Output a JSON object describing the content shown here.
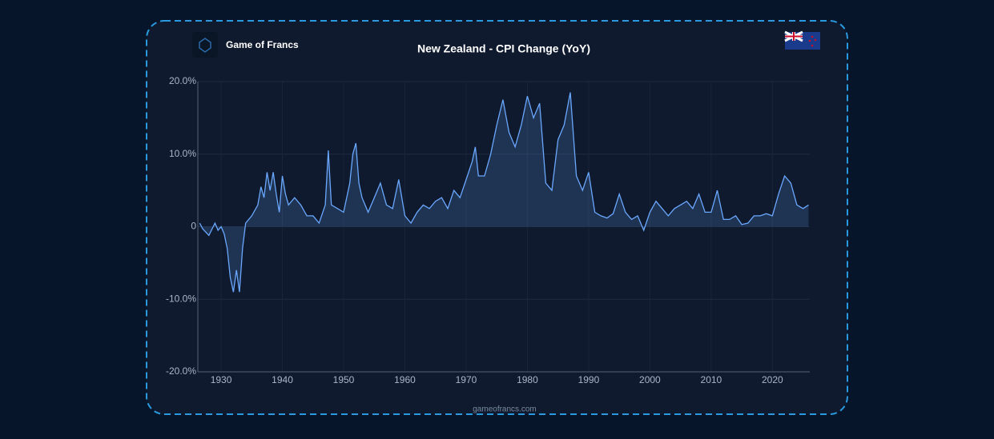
{
  "brand": "Game of Francs",
  "footer": "gameofrancs.com",
  "chart_data": {
    "type": "area",
    "title": "New Zealand - CPI Change (YoY)",
    "x": [
      1926.5,
      1927,
      1928,
      1929,
      1929.5,
      1930,
      1930.5,
      1931,
      1931.5,
      1932,
      1932.5,
      1933,
      1933.5,
      1934,
      1935,
      1936,
      1936.5,
      1937,
      1937.5,
      1938,
      1938.5,
      1939,
      1939.5,
      1940,
      1940.5,
      1941,
      1942,
      1943,
      1944,
      1945,
      1946,
      1947,
      1947.5,
      1948,
      1949,
      1950,
      1951,
      1951.5,
      1952,
      1952.5,
      1953,
      1954,
      1955,
      1956,
      1957,
      1958,
      1959,
      1960,
      1961,
      1962,
      1963,
      1964,
      1965,
      1966,
      1967,
      1968,
      1969,
      1970,
      1971,
      1971.5,
      1972,
      1973,
      1974,
      1975,
      1976,
      1977,
      1978,
      1979,
      1980,
      1981,
      1982,
      1983,
      1984,
      1985,
      1986,
      1987,
      1988,
      1989,
      1990,
      1991,
      1992,
      1993,
      1994,
      1995,
      1996,
      1997,
      1998,
      1999,
      2000,
      2001,
      2002,
      2003,
      2004,
      2005,
      2006,
      2007,
      2008,
      2009,
      2010,
      2011,
      2012,
      2013,
      2014,
      2015,
      2016,
      2017,
      2018,
      2019,
      2020,
      2021,
      2022,
      2023,
      2024,
      2025,
      2025.9
    ],
    "series": [
      {
        "name": "CPI Change (YoY)",
        "color": "#6aa8ff",
        "values": [
          0.5,
          -0.3,
          -1.2,
          0.5,
          -0.5,
          0,
          -1,
          -3,
          -7,
          -9,
          -6,
          -9,
          -3,
          0.5,
          1.5,
          3,
          5.5,
          4,
          7.5,
          5,
          7.5,
          4.5,
          2,
          7,
          4.5,
          3,
          4,
          3,
          1.5,
          1.5,
          0.5,
          3,
          10.5,
          3,
          2.5,
          2,
          6,
          10,
          11.5,
          6,
          4,
          2,
          4,
          6,
          3,
          2.5,
          6.5,
          1.5,
          0.5,
          2,
          3,
          2.5,
          3.5,
          4,
          2.5,
          5,
          4,
          6.5,
          9,
          11,
          7,
          7,
          10,
          14,
          17.5,
          13,
          11,
          14,
          18,
          15,
          17,
          6,
          5,
          12,
          14,
          18.5,
          7,
          5,
          7.5,
          2,
          1.5,
          1.2,
          1.8,
          4.5,
          2,
          1,
          1.5,
          -0.5,
          2,
          3.5,
          2.5,
          1.5,
          2.5,
          3,
          3.5,
          2.5,
          4.5,
          2,
          2,
          5,
          1,
          1,
          1.5,
          0.3,
          0.5,
          1.5,
          1.5,
          1.8,
          1.5,
          4.5,
          7,
          6,
          3,
          2.5,
          3
        ]
      }
    ],
    "xlim": [
      1926.2,
      2026.1
    ],
    "xticks": [
      1930,
      1940,
      1950,
      1960,
      1970,
      1980,
      1990,
      2000,
      2010,
      2020
    ],
    "ylim": [
      -20,
      20
    ],
    "yticks": [
      {
        "value": -20,
        "label": "-20.0%"
      },
      {
        "value": -10,
        "label": "-10.0%"
      },
      0,
      {
        "value": 10,
        "label": "10.0%"
      },
      {
        "value": 20,
        "label": "20.0%"
      }
    ],
    "grid": true
  }
}
